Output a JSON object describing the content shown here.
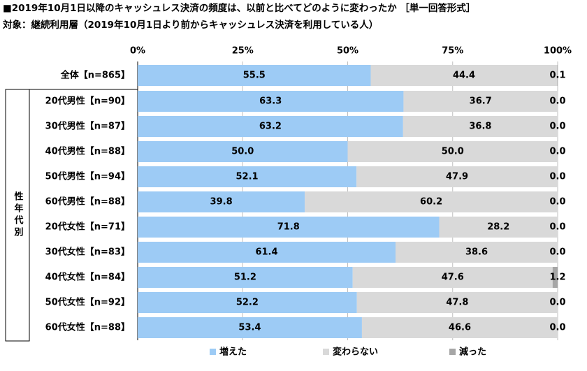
{
  "chart_data": {
    "type": "stacked-bar-horizontal",
    "title": "■2019年10月1日以降のキャッシュレス決済の頻度は、以前と比べてどのように変わったか ［単一回答形式］",
    "subtitle": "対象：継続利用層（2019年10月1日より前からキャッシュレス決済を利用している人）",
    "group_label": "性年代別",
    "categories": [
      "全体【n=865】",
      "20代男性【n=90】",
      "30代男性【n=87】",
      "40代男性【n=88】",
      "50代男性【n=94】",
      "60代男性【n=88】",
      "20代女性【n=71】",
      "30代女性【n=83】",
      "40代女性【n=84】",
      "50代女性【n=92】",
      "60代女性【n=88】"
    ],
    "series": [
      {
        "name": "増えた",
        "color": "#9dcbf5",
        "values": [
          55.5,
          63.3,
          63.2,
          50.0,
          52.1,
          39.8,
          71.8,
          61.4,
          51.2,
          52.2,
          53.4
        ],
        "value_labels": [
          "55.5",
          "63.3",
          "63.2",
          "50.0",
          "52.1",
          "39.8",
          "71.8",
          "61.4",
          "51.2",
          "52.2",
          "53.4"
        ]
      },
      {
        "name": "変わらない",
        "color": "#d9d9d9",
        "values": [
          44.4,
          36.7,
          36.8,
          50.0,
          47.9,
          60.2,
          28.2,
          38.6,
          47.6,
          47.8,
          46.6
        ],
        "value_labels": [
          "44.4",
          "36.7",
          "36.8",
          "50.0",
          "47.9",
          "60.2",
          "28.2",
          "38.6",
          "47.6",
          "47.8",
          "46.6"
        ]
      },
      {
        "name": "減った",
        "color": "#a6a6a6",
        "values": [
          0.1,
          0.0,
          0.0,
          0.0,
          0.0,
          0.0,
          0.0,
          0.0,
          1.2,
          0.0,
          0.0
        ],
        "value_labels": [
          "0.1",
          "0.0",
          "0.0",
          "0.0",
          "0.0",
          "0.0",
          "0.0",
          "0.0",
          "1.2",
          "0.0",
          "0.0"
        ]
      }
    ],
    "xlim": [
      0,
      100
    ],
    "xticks": [
      {
        "value": 0,
        "label": "0%"
      },
      {
        "value": 25,
        "label": "25%"
      },
      {
        "value": 50,
        "label": "50%"
      },
      {
        "value": 75,
        "label": "75%"
      },
      {
        "value": 100,
        "label": "100%"
      }
    ],
    "grid": true
  }
}
